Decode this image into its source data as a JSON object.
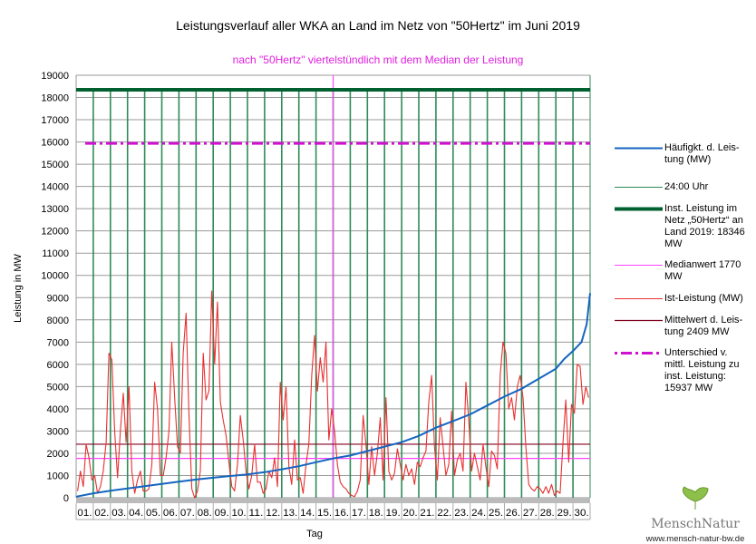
{
  "colors": {
    "frequency": "#1565c0",
    "midnight": "#2e8b57",
    "installed": "#006030",
    "median": "#ff44ff",
    "actual": "#e83030",
    "mean": "#800020",
    "difference": "#d010d0",
    "grid": "#999999"
  },
  "chart_data": {
    "type": "line",
    "title": "Leistungsverlauf aller WKA an Land im Netz von \"50Hertz\" im Juni 2019",
    "subtitle": "nach \"50Hertz\" viertelstündlich mit dem Median der Leistung",
    "xlabel": "Tag",
    "ylabel": "Leistung in MW",
    "ylim": [
      0,
      19000
    ],
    "ytick_step": 1000,
    "yticks": [
      "0",
      "1000",
      "2000",
      "3000",
      "4000",
      "5000",
      "6000",
      "7000",
      "8000",
      "9000",
      "10000",
      "11000",
      "12000",
      "13000",
      "14000",
      "15000",
      "16000",
      "17000",
      "18000",
      "19000"
    ],
    "xlim_days": [
      0,
      30
    ],
    "day_labels": [
      "01.",
      "02.",
      "03.",
      "04.",
      "05.",
      "06.",
      "07.",
      "08.",
      "09.",
      "10.",
      "11.",
      "12.",
      "13.",
      "14.",
      "15.",
      "16.",
      "17.",
      "18.",
      "19.",
      "20.",
      "21.",
      "22.",
      "23.",
      "24.",
      "25.",
      "26.",
      "27.",
      "28.",
      "29.",
      "30."
    ],
    "grid": true,
    "legend_placement": "right",
    "series": [
      {
        "name": "Häufigkt. d. Leistung (MW)",
        "key": "frequency",
        "x": [
          0,
          1,
          2,
          3,
          4,
          5,
          6,
          7,
          8,
          9,
          10,
          11,
          12,
          13,
          14,
          15,
          16,
          17,
          18,
          19,
          20,
          21,
          22,
          23,
          24,
          25,
          26,
          27,
          28,
          28.5,
          29,
          29.5,
          29.8,
          30
        ],
        "y": [
          50,
          200,
          320,
          420,
          520,
          620,
          720,
          820,
          900,
          980,
          1050,
          1150,
          1280,
          1420,
          1600,
          1770,
          1900,
          2100,
          2300,
          2500,
          2780,
          3150,
          3450,
          3750,
          4150,
          4550,
          4900,
          5350,
          5800,
          6250,
          6600,
          7000,
          7800,
          9200
        ]
      },
      {
        "name": "Ist-Leistung (MW)",
        "key": "actual",
        "points_per_day": 6,
        "y": [
          300,
          1200,
          500,
          2400,
          1800,
          800,
          1000,
          200,
          500,
          1200,
          2500,
          6500,
          6200,
          3000,
          900,
          3000,
          4700,
          2500,
          5000,
          1200,
          200,
          800,
          1200,
          300,
          300,
          400,
          1500,
          5200,
          4000,
          1000,
          1000,
          1800,
          3000,
          7000,
          4500,
          2300,
          2000,
          6500,
          8300,
          3800,
          400,
          0,
          300,
          1200,
          6500,
          4400,
          4800,
          9300,
          6000,
          8800,
          4300,
          3500,
          2800,
          1600,
          500,
          300,
          1500,
          3700,
          2600,
          1200,
          400,
          1000,
          2400,
          700,
          700,
          200,
          400,
          1200,
          900,
          1800,
          500,
          5200,
          3500,
          5000,
          1400,
          600,
          2600,
          800,
          900,
          200,
          1500,
          2400,
          5500,
          7300,
          4800,
          6300,
          5200,
          7000,
          2600,
          4000,
          3000,
          1500,
          700,
          500,
          400,
          200,
          100,
          50,
          300,
          800,
          3700,
          2400,
          600,
          2300,
          1000,
          2000,
          3600,
          800,
          4500,
          1200,
          800,
          1100,
          2200,
          1500,
          800,
          1500,
          1000,
          1300,
          600,
          1600,
          1400,
          1800,
          2100,
          4300,
          5500,
          2300,
          800,
          3600,
          2300,
          1000,
          1500,
          3900,
          1000,
          1700,
          2000,
          1200,
          5200,
          3500,
          1200,
          2000,
          1400,
          800,
          2400,
          1400,
          500,
          2100,
          1900,
          1300,
          5500,
          7000,
          6500,
          4000,
          4500,
          3500,
          5000,
          5500,
          4500,
          2300,
          600,
          400,
          300,
          500,
          400,
          200,
          500,
          200,
          600,
          100,
          300,
          200,
          2500,
          4400,
          1600,
          4200,
          3800,
          6000,
          5900,
          4200,
          5000,
          4500
        ]
      },
      {
        "name": "Inst. Leistung im Netz „50Hertz“ an Land 2019: 18346 MW",
        "key": "installed",
        "value": 18346
      },
      {
        "name": "Medianwert 1770 MW",
        "key": "median",
        "value": 1770,
        "median_day": 15
      },
      {
        "name": "Mittelwert d. Leistung 2409 MW",
        "key": "mean",
        "value": 2409
      },
      {
        "name": "Unterschied v. mittl. Leistung zu inst. Leistung: 15937 MW",
        "key": "difference",
        "value": 15937
      },
      {
        "name": "24:00 Uhr",
        "key": "midnight"
      }
    ]
  },
  "legend": [
    {
      "key": "frequency",
      "lines": [
        "Häufigkt. d. Leis-",
        "tung (MW)"
      ]
    },
    {
      "key": "midnight",
      "lines": [
        "24:00 Uhr"
      ]
    },
    {
      "key": "installed",
      "lines": [
        "Inst. Leistung im",
        "Netz „50Hertz“ an",
        "Land 2019: 18346",
        "MW"
      ]
    },
    {
      "key": "median",
      "lines": [
        "Medianwert 1770",
        "MW"
      ]
    },
    {
      "key": "actual",
      "lines": [
        "Ist-Leistung (MW)"
      ]
    },
    {
      "key": "mean",
      "lines": [
        "Mittelwert d. Leis-",
        "tung 2409 MW"
      ]
    },
    {
      "key": "difference",
      "lines": [
        "Unterschied v.",
        "mittl. Leistung zu",
        "inst. Leistung:",
        "15937 MW"
      ]
    }
  ],
  "logo": {
    "name": "MenschNatur",
    "url": "www.mensch-natur-bw.de"
  }
}
